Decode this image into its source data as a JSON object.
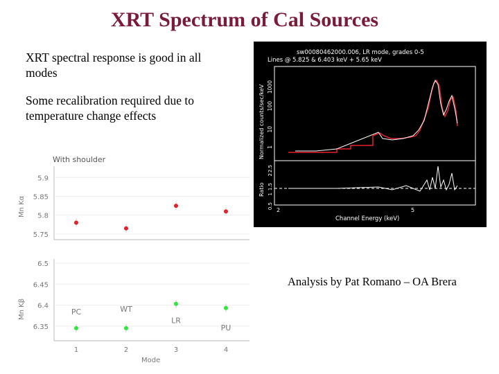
{
  "title": "XRT Spectrum of Cal Sources",
  "bullets": [
    "XRT spectral response is good in all modes",
    "Some recalibration required due to temperature change effects"
  ],
  "credit": "Analysis by Pat Romano – OA Brera",
  "spectrum": {
    "header_line1": "sw00080462000.006, LR mode, grades 0-5",
    "header_line2": "Lines @ 5.825 & 6.403 keV + 5.65 keV",
    "ylabel_top": "Normalized counts/sec/keV",
    "ylabel_bottom": "Ratio",
    "xlabel": "Channel Energy (keV)",
    "y_ticks_top": [
      "1",
      "10",
      "100",
      "1000"
    ],
    "y_ticks_bottom": [
      "0.5",
      "1",
      "1.5",
      "2",
      "2.5"
    ],
    "x_ticks": [
      "2",
      "5"
    ]
  },
  "chart_data": [
    {
      "type": "scatter",
      "title": "With shoulder",
      "ylabel": "Mn Kα",
      "categories": [
        "1",
        "2",
        "3",
        "4"
      ],
      "x": [
        1,
        2,
        3,
        4
      ],
      "values": [
        5.78,
        5.765,
        5.825,
        5.81
      ],
      "yticks": [
        "5.75",
        "5.8",
        "5.85",
        "5.9"
      ],
      "ylim": [
        5.735,
        5.93
      ],
      "color": "#e8202a"
    },
    {
      "type": "scatter",
      "xlabel": "Mode",
      "ylabel": "Mn Kβ",
      "categories": [
        "1",
        "2",
        "3",
        "4"
      ],
      "x": [
        1,
        2,
        3,
        4
      ],
      "values": [
        6.345,
        6.345,
        6.403,
        6.393
      ],
      "point_labels": [
        "PC",
        "WT",
        "LR",
        "PU"
      ],
      "yticks": [
        "6.35",
        "6.4",
        "6.45",
        "6.5"
      ],
      "ylim": [
        6.315,
        6.51
      ],
      "color": "#2ee83a"
    }
  ]
}
